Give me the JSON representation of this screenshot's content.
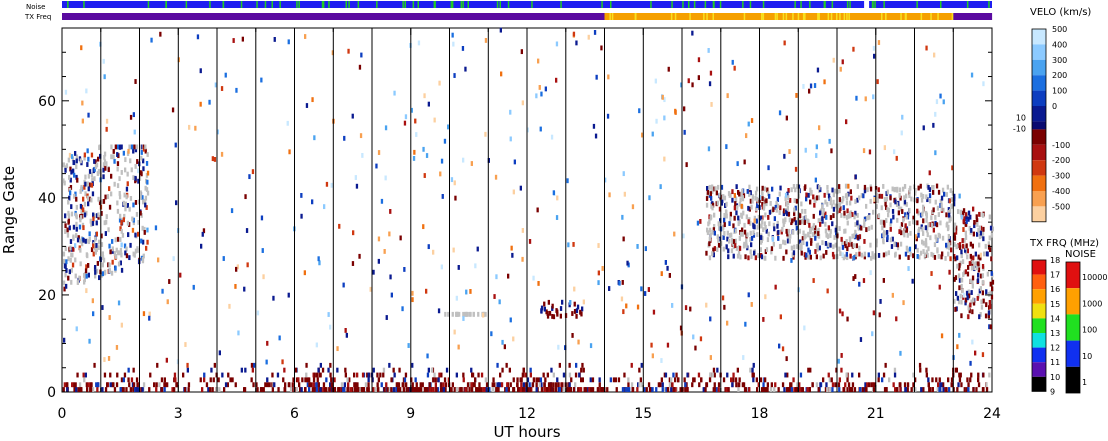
{
  "chart_data": {
    "type": "heatmap",
    "title": "",
    "xlabel": "UT hours",
    "ylabel": "Range Gate",
    "xlim": [
      0,
      24
    ],
    "ylim": [
      0,
      75
    ],
    "x_ticks": [
      "0",
      "3",
      "6",
      "9",
      "12",
      "15",
      "18",
      "21",
      "24"
    ],
    "y_ticks": [
      "0",
      "20",
      "40",
      "60"
    ],
    "scan_boundaries_hours": [
      1,
      2,
      3,
      4,
      5,
      6,
      7,
      8,
      9,
      10,
      11,
      12,
      13,
      14,
      15,
      16,
      17,
      18,
      19,
      20,
      21,
      22,
      23
    ],
    "status_bars": {
      "noise_label": "Noise",
      "txfreq_label": "TX Freq",
      "noise_colors": [
        "#1e1ef0",
        "#22cc22"
      ],
      "txfreq_segments": [
        {
          "from": 0,
          "to": 14,
          "color": "#5a0aa0"
        },
        {
          "from": 14,
          "to": 23,
          "color": "#f5a000"
        },
        {
          "from": 23,
          "to": 24,
          "color": "#5a0aa0"
        }
      ]
    },
    "velocity_colorbar": {
      "title": "VELO (km/s)",
      "positive_ticks": [
        "500",
        "400",
        "300",
        "200",
        "100",
        "0"
      ],
      "negative_ticks": [
        "-100",
        "-200",
        "-300",
        "-400",
        "-500"
      ],
      "zero_band_labels": [
        "10",
        "-10"
      ],
      "positive_colors": [
        "#c8e8ff",
        "#8ccaff",
        "#4aa3f0",
        "#1b6fe0",
        "#0d3ec0",
        "#0a1a90"
      ],
      "negative_colors": [
        "#7a0000",
        "#a81010",
        "#d03810",
        "#f07010",
        "#f8a050",
        "#fcd0a0"
      ],
      "ground_scatter_color": "#c0c0c0"
    },
    "txfreq_colorbar": {
      "title": "TX FRQ (MHz)",
      "ticks": [
        "18",
        "17",
        "16",
        "15",
        "14",
        "13",
        "12",
        "11",
        "10",
        "9"
      ],
      "colors": [
        "#e01010",
        "#ff6010",
        "#ffa000",
        "#f0e010",
        "#20e020",
        "#10e0e0",
        "#1030f0",
        "#5a10b0",
        "#000000"
      ]
    },
    "noise_colorbar": {
      "title": "NOISE",
      "ticks": [
        "10000",
        "1000",
        "100",
        "10",
        "1"
      ],
      "colors": [
        "#e01010",
        "#ffa000",
        "#20e020",
        "#1030f0",
        "#000000"
      ]
    },
    "echo_regions": [
      {
        "label": "ground-band",
        "x": [
          0,
          24
        ],
        "gates": [
          0,
          6
        ],
        "dominant": "negative-low"
      },
      {
        "label": "early-scatter",
        "x": [
          0,
          2.3
        ],
        "gates": [
          18,
          50
        ],
        "dominant": "ground-scatter"
      },
      {
        "label": "evening-scatter",
        "x": [
          16.5,
          23
        ],
        "gates": [
          28,
          42
        ],
        "dominant": "ground-scatter"
      },
      {
        "label": "late-scatter",
        "x": [
          23,
          24
        ],
        "gates": [
          15,
          35
        ],
        "dominant": "negative-mixed"
      }
    ]
  }
}
